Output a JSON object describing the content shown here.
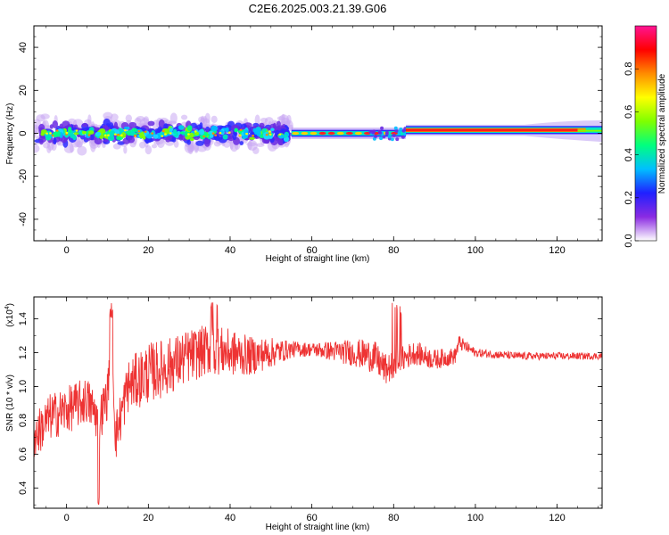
{
  "title": "C2E6.2025.003.21.39.G06",
  "chart_data": [
    {
      "type": "heatmap",
      "xlabel": "Height of straight line (km)",
      "ylabel": "Frequency (Hz)",
      "xlim": [
        -8,
        131
      ],
      "ylim": [
        -50,
        50
      ],
      "xticks": [
        "0",
        "20",
        "40",
        "60",
        "80",
        "100",
        "120"
      ],
      "yticks": [
        "-40",
        "-20",
        "0",
        "20",
        "40"
      ],
      "colorbar": {
        "label": "Normalized spectral amplitude",
        "range": [
          0,
          1
        ],
        "ticks": [
          "0.0",
          "0.2",
          "0.4",
          "0.6",
          "0.8"
        ],
        "colors": [
          "#ffffff",
          "#8a2be2",
          "#2020ff",
          "#00bfff",
          "#00ff7f",
          "#7fff00",
          "#ffff00",
          "#ff8c00",
          "#ff0000",
          "#ff1493"
        ]
      },
      "band_segments": [
        {
          "x": [
            -8,
            55
          ],
          "center_hz": 0,
          "halfwidth_hz": 5,
          "note": "broad scattered energy"
        },
        {
          "x": [
            55,
            83
          ],
          "center_hz": 0,
          "halfwidth_hz": 1.5
        },
        {
          "x": [
            83,
            131
          ],
          "center_hz": 1.5,
          "halfwidth_hz": 1.5
        }
      ]
    },
    {
      "type": "line",
      "xlabel": "Height of straight line (km)",
      "ylabel": "SNR (10 * v/v)",
      "multiplier": "(x10",
      "multiplier_exp": "4",
      "multiplier_close": ")",
      "xlim": [
        -8,
        131
      ],
      "ylim": [
        0.28,
        1.53
      ],
      "xticks": [
        "0",
        "20",
        "40",
        "60",
        "80",
        "100",
        "120"
      ],
      "yticks": [
        "0.4",
        "0.6",
        "0.8",
        "1.0",
        "1.2",
        "1.4"
      ],
      "color": "#ee3333",
      "trend": {
        "x": [
          -8,
          -4,
          0,
          5,
          8,
          10,
          11,
          12,
          15,
          20,
          25,
          30,
          35,
          40,
          45,
          50,
          55,
          60,
          70,
          75,
          78,
          80,
          82,
          85,
          90,
          95,
          96,
          100,
          110,
          120,
          131
        ],
        "y": [
          0.7,
          0.82,
          0.86,
          0.92,
          0.8,
          0.95,
          1.3,
          0.7,
          1.0,
          1.08,
          1.12,
          1.18,
          1.22,
          1.2,
          1.18,
          1.2,
          1.22,
          1.22,
          1.2,
          1.18,
          1.1,
          1.12,
          1.16,
          1.2,
          1.16,
          1.18,
          1.26,
          1.2,
          1.18,
          1.18,
          1.18
        ]
      },
      "noise_amplitude": {
        "x": [
          -8,
          10,
          20,
          30,
          40,
          50,
          55,
          60,
          75,
          85,
          95,
          100,
          131
        ],
        "y": [
          0.14,
          0.14,
          0.18,
          0.16,
          0.14,
          0.09,
          0.05,
          0.04,
          0.1,
          0.07,
          0.05,
          0.025,
          0.02
        ]
      }
    }
  ]
}
